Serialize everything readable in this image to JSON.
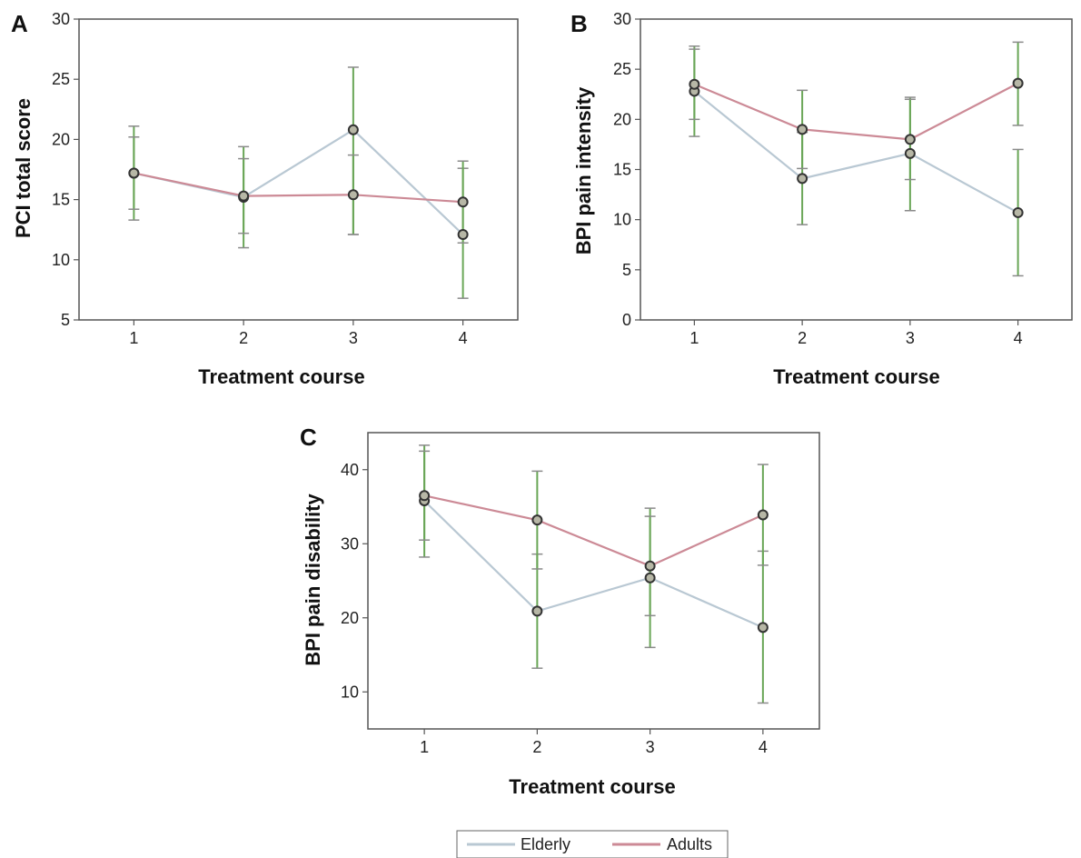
{
  "chart_data": [
    {
      "type": "line",
      "panel": "A",
      "xlabel": "Treatment course",
      "ylabel": "PCI total score",
      "x": [
        1,
        2,
        3,
        4
      ],
      "ylim": [
        5,
        30
      ],
      "yticks": [
        5,
        10,
        15,
        20,
        25,
        30
      ],
      "grid": false,
      "series": [
        {
          "name": "Elderly",
          "values": [
            17.2,
            15.2,
            20.8,
            12.1
          ],
          "err_low": [
            13.3,
            11.0,
            12.1,
            6.8
          ],
          "err_high": [
            21.1,
            19.4,
            26.0,
            17.6
          ]
        },
        {
          "name": "Adults",
          "values": [
            17.2,
            15.3,
            15.4,
            14.8
          ],
          "err_low": [
            14.2,
            12.2,
            12.1,
            11.4
          ],
          "err_high": [
            20.2,
            18.4,
            18.7,
            18.2
          ]
        }
      ]
    },
    {
      "type": "line",
      "panel": "B",
      "xlabel": "Treatment course",
      "ylabel": "BPI pain intensity",
      "x": [
        1,
        2,
        3,
        4
      ],
      "ylim": [
        0,
        30
      ],
      "yticks": [
        0,
        5,
        10,
        15,
        20,
        25,
        30
      ],
      "grid": false,
      "series": [
        {
          "name": "Elderly",
          "values": [
            22.8,
            14.1,
            16.6,
            10.7
          ],
          "err_low": [
            18.3,
            9.5,
            10.9,
            4.4
          ],
          "err_high": [
            27.3,
            18.7,
            22.2,
            17.0
          ]
        },
        {
          "name": "Adults",
          "values": [
            23.5,
            19.0,
            18.0,
            23.6
          ],
          "err_low": [
            20.0,
            15.1,
            14.0,
            19.4
          ],
          "err_high": [
            27.0,
            22.9,
            22.0,
            27.7
          ]
        }
      ]
    },
    {
      "type": "line",
      "panel": "C",
      "xlabel": "Treatment course",
      "ylabel": "BPI pain disability",
      "x": [
        1,
        2,
        3,
        4
      ],
      "ylim": [
        5,
        45
      ],
      "yticks": [
        10,
        20,
        30,
        40
      ],
      "grid": false,
      "series": [
        {
          "name": "Elderly",
          "values": [
            35.8,
            20.9,
            25.4,
            18.7
          ],
          "err_low": [
            28.2,
            13.2,
            16.0,
            8.5
          ],
          "err_high": [
            43.3,
            28.6,
            34.8,
            29.0
          ]
        },
        {
          "name": "Adults",
          "values": [
            36.5,
            33.2,
            27.0,
            33.9
          ],
          "err_low": [
            30.5,
            26.6,
            20.3,
            27.1
          ],
          "err_high": [
            42.5,
            39.8,
            33.7,
            40.7
          ]
        }
      ]
    }
  ],
  "legend": {
    "items": [
      {
        "label": "Elderly",
        "color": "#b9c8d3"
      },
      {
        "label": "Adults",
        "color": "#cc8a96"
      }
    ]
  },
  "colors": {
    "elderly_line": "#b9c8d3",
    "adults_line": "#cc8a96",
    "error_bar": "#6aa657",
    "error_cap": "#8a8a8a",
    "marker_edge": "#333333",
    "marker_fill": "#b7b7a6"
  }
}
